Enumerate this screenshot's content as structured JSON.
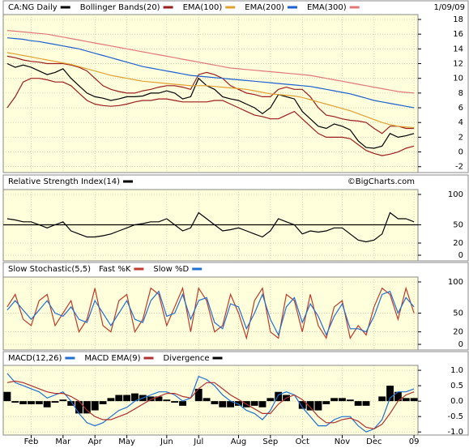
{
  "chart_data": [
    {
      "type": "line",
      "date": "1/09/09",
      "ylim": [
        -2.8,
        18.66
      ],
      "yticks": [
        -2,
        0,
        2,
        4,
        6,
        8,
        10,
        12,
        14,
        16,
        18
      ],
      "grid": true,
      "series": [
        {
          "name": "CA:NG Daily",
          "color": "#000000",
          "values": [
            12,
            11.5,
            11.8,
            11.5,
            11,
            10.5,
            10.8,
            11.3,
            10,
            9,
            8,
            7.5,
            7.3,
            7,
            7.2,
            7.5,
            7.5,
            7.6,
            8,
            8,
            8.3,
            8,
            7.2,
            7.5,
            10,
            9,
            8.5,
            7.5,
            7.2,
            7,
            6.5,
            6,
            5.2,
            6,
            7.8,
            7.5,
            7.2,
            5.5,
            4.5,
            3.5,
            3.2,
            3.8,
            3.5,
            3,
            1.5,
            0.6,
            0.5,
            0.8,
            2.5,
            2,
            2.2,
            2.5
          ]
        },
        {
          "name": "Bollinger Bands(20)",
          "color": "#9b1c1c",
          "values": [
            13,
            12.8,
            12.5,
            12.3,
            12.2,
            12,
            12,
            12,
            11.8,
            11.5,
            11,
            10,
            9,
            8.5,
            8.2,
            8,
            8,
            8.3,
            8.5,
            8.8,
            9,
            9,
            8.8,
            8.5,
            10.5,
            10.8,
            10.5,
            10,
            9,
            8.5,
            8,
            7.8,
            7.5,
            7.5,
            8.5,
            8.8,
            8.5,
            8.5,
            7.5,
            6,
            5,
            4.8,
            4.5,
            4.3,
            4.2,
            4,
            3.2,
            2.5,
            3.5,
            3.5,
            3.2,
            3.2
          ],
          "lower": [
            6,
            7.5,
            9.5,
            10,
            10,
            9.8,
            9.5,
            9.5,
            9,
            8,
            7,
            6.5,
            6.3,
            6.2,
            6.3,
            6.5,
            6.8,
            7,
            7,
            7.2,
            7.2,
            7,
            6.8,
            6.8,
            6.8,
            6.8,
            7,
            7,
            6.5,
            6,
            5.5,
            5,
            4.8,
            4.5,
            4.5,
            5,
            5.5,
            4.5,
            3.5,
            2.5,
            2,
            2,
            2,
            1.8,
            1,
            0.2,
            -0.2,
            -0.5,
            -0.3,
            0,
            0.5,
            0.8
          ]
        },
        {
          "name": "EMA(100)",
          "color": "#e0a030",
          "values": [
            13.5,
            13.3,
            13.1,
            12.9,
            12.7,
            12.5,
            12.3,
            12.1,
            11.9,
            11.6,
            11.3,
            11,
            10.7,
            10.4,
            10.2,
            10,
            9.8,
            9.6,
            9.5,
            9.4,
            9.3,
            9.2,
            9.1,
            9,
            9,
            9,
            8.9,
            8.8,
            8.7,
            8.6,
            8.5,
            8.3,
            8.1,
            7.9,
            7.8,
            7.7,
            7.6,
            7.4,
            7.1,
            6.8,
            6.5,
            6.2,
            5.9,
            5.6,
            5.2,
            4.8,
            4.4,
            4,
            3.7,
            3.5,
            3.4,
            3.3
          ]
        },
        {
          "name": "EMA(200)",
          "color": "#1f5fd0",
          "values": [
            15.5,
            15.4,
            15.3,
            15.1,
            15,
            14.8,
            14.6,
            14.4,
            14.2,
            14,
            13.7,
            13.4,
            13.1,
            12.8,
            12.5,
            12.2,
            11.9,
            11.6,
            11.4,
            11.2,
            11,
            10.8,
            10.6,
            10.4,
            10.3,
            10.2,
            10.1,
            10,
            9.9,
            9.8,
            9.7,
            9.6,
            9.5,
            9.4,
            9.3,
            9.2,
            9.1,
            9,
            8.9,
            8.7,
            8.5,
            8.3,
            8.1,
            7.9,
            7.6,
            7.3,
            7,
            6.8,
            6.6,
            6.4,
            6.2,
            6
          ]
        },
        {
          "name": "EMA(300)",
          "color": "#e07878",
          "values": [
            16.5,
            16.4,
            16.3,
            16.2,
            16.1,
            16,
            15.8,
            15.6,
            15.4,
            15.2,
            15,
            14.8,
            14.6,
            14.4,
            14.2,
            14,
            13.8,
            13.6,
            13.4,
            13.2,
            13,
            12.8,
            12.6,
            12.4,
            12.2,
            12,
            11.8,
            11.6,
            11.4,
            11.3,
            11.2,
            11.1,
            11,
            10.9,
            10.8,
            10.7,
            10.6,
            10.5,
            10.4,
            10.2,
            10,
            9.8,
            9.6,
            9.4,
            9.2,
            9,
            8.8,
            8.6,
            8.4,
            8.2,
            8.1,
            8
          ]
        }
      ]
    },
    {
      "type": "line",
      "annotation": "©BigCharts.com",
      "ylim": [
        -9.3,
        108
      ],
      "yticks": [
        0,
        20,
        50,
        100
      ],
      "reference_line": 50,
      "grid": true,
      "series": [
        {
          "name": "Relative Strength Index(14)",
          "color": "#000000",
          "values": [
            60,
            58,
            55,
            55,
            50,
            45,
            50,
            55,
            40,
            35,
            30,
            30,
            32,
            35,
            40,
            45,
            50,
            52,
            55,
            55,
            60,
            50,
            40,
            45,
            70,
            60,
            50,
            40,
            42,
            45,
            40,
            35,
            30,
            40,
            60,
            55,
            50,
            35,
            40,
            38,
            40,
            45,
            45,
            35,
            25,
            22,
            25,
            35,
            70,
            60,
            60,
            55
          ]
        }
      ]
    },
    {
      "type": "line",
      "title": "Slow Stochastic(5,5)",
      "ylim": [
        -9,
        107.8
      ],
      "yticks": [
        0,
        20,
        50,
        100
      ],
      "grid": true,
      "series": [
        {
          "name": "Fast %K",
          "color": "#c0392b",
          "values": [
            60,
            80,
            40,
            30,
            70,
            80,
            30,
            50,
            70,
            20,
            40,
            90,
            30,
            20,
            70,
            80,
            20,
            40,
            90,
            80,
            30,
            60,
            90,
            20,
            90,
            70,
            20,
            30,
            80,
            50,
            10,
            70,
            90,
            20,
            10,
            80,
            70,
            20,
            80,
            30,
            10,
            60,
            70,
            10,
            30,
            15,
            60,
            90,
            80,
            40,
            90,
            50
          ]
        },
        {
          "name": "Slow %D",
          "color": "#1f6fd0",
          "values": [
            55,
            70,
            55,
            40,
            55,
            70,
            50,
            45,
            60,
            40,
            35,
            70,
            50,
            30,
            50,
            70,
            40,
            35,
            70,
            85,
            45,
            50,
            80,
            40,
            70,
            75,
            35,
            25,
            65,
            60,
            25,
            50,
            80,
            40,
            15,
            60,
            75,
            35,
            65,
            45,
            15,
            45,
            65,
            25,
            25,
            20,
            45,
            80,
            85,
            50,
            75,
            60
          ]
        }
      ]
    },
    {
      "type": "line",
      "categories": [
        null,
        null,
        null,
        "Feb",
        null,
        null,
        null,
        "Mar",
        null,
        null,
        null,
        "Apr",
        null,
        null,
        null,
        "May",
        null,
        null,
        null,
        null,
        "Jun",
        null,
        null,
        null,
        "Jul",
        null,
        null,
        null,
        null,
        "Aug",
        null,
        null,
        null,
        "Sep",
        null,
        null,
        null,
        "Oct",
        null,
        null,
        null,
        null,
        "Nov",
        null,
        null,
        null,
        "Dec",
        null,
        null,
        null,
        null,
        "09"
      ],
      "ylim": [
        -1.1,
        1.16
      ],
      "yticks": [
        {
          "value": -1,
          "label": "-1.0"
        },
        {
          "value": -0.5,
          "label": "-0.5"
        },
        {
          "value": 0,
          "label": "0.0"
        },
        {
          "value": 0.5,
          "label": "0.5"
        },
        {
          "value": 1,
          "label": "1.0"
        }
      ],
      "grid": true,
      "series": [
        {
          "name": "MACD(12,26)",
          "color": "#1f6fd0",
          "values": [
            0.9,
            0.6,
            0.5,
            0.4,
            0.3,
            0.1,
            0.2,
            0.3,
            0.0,
            -0.4,
            -0.7,
            -0.8,
            -0.7,
            -0.5,
            -0.3,
            -0.2,
            0.0,
            0.1,
            0.2,
            0.3,
            0.3,
            0.2,
            0.0,
            0.1,
            0.8,
            0.7,
            0.5,
            0.2,
            0.0,
            -0.1,
            -0.3,
            -0.4,
            -0.6,
            -0.3,
            0.2,
            0.3,
            0.2,
            -0.2,
            -0.5,
            -0.8,
            -0.8,
            -0.6,
            -0.5,
            -0.5,
            -0.8,
            -1.0,
            -0.9,
            -0.6,
            0.1,
            0.3,
            0.3,
            0.4
          ]
        },
        {
          "name": "MACD EMA(9)",
          "color": "#b03030",
          "values": [
            0.6,
            0.65,
            0.6,
            0.5,
            0.4,
            0.3,
            0.25,
            0.25,
            0.15,
            0,
            -0.3,
            -0.5,
            -0.6,
            -0.6,
            -0.5,
            -0.4,
            -0.25,
            -0.1,
            0.05,
            0.15,
            0.25,
            0.25,
            0.15,
            0.1,
            0.4,
            0.6,
            0.6,
            0.4,
            0.2,
            0.05,
            -0.1,
            -0.25,
            -0.4,
            -0.4,
            -0.1,
            0.1,
            0.2,
            0.05,
            -0.2,
            -0.5,
            -0.7,
            -0.7,
            -0.6,
            -0.55,
            -0.65,
            -0.85,
            -0.9,
            -0.75,
            -0.4,
            0,
            0.2,
            0.3
          ]
        },
        {
          "name": "Divergence",
          "color": "#000000",
          "type": "bar",
          "values": [
            0.3,
            -0.05,
            -0.1,
            -0.1,
            -0.1,
            -0.2,
            -0.05,
            0.05,
            -0.15,
            -0.4,
            -0.4,
            -0.3,
            -0.1,
            0.1,
            0.2,
            0.2,
            0.25,
            0.2,
            0.15,
            0.15,
            0.05,
            -0.05,
            -0.15,
            0,
            0.4,
            0.1,
            -0.1,
            -0.2,
            -0.2,
            -0.15,
            -0.2,
            -0.15,
            -0.2,
            0.1,
            0.3,
            0.2,
            0,
            -0.25,
            -0.3,
            -0.3,
            -0.1,
            0.1,
            0.1,
            0.05,
            -0.15,
            -0.15,
            0,
            0.15,
            0.5,
            0.3,
            0.1,
            0.1
          ]
        }
      ]
    }
  ]
}
